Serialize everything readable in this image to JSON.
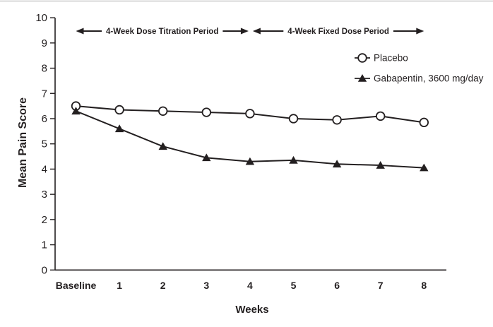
{
  "figure": {
    "background": "#ffffff",
    "ink_color": "#231f20",
    "top_border_color": "#c9c9c9"
  },
  "chart_data": {
    "type": "line",
    "title": "",
    "xlabel": "Weeks",
    "ylabel": "Mean Pain Score",
    "categories": [
      "Baseline",
      "1",
      "2",
      "3",
      "4",
      "5",
      "6",
      "7",
      "8"
    ],
    "ylim": [
      0,
      10
    ],
    "yticks": [
      0,
      1,
      2,
      3,
      4,
      5,
      6,
      7,
      8,
      9,
      10
    ],
    "grid": false,
    "series": [
      {
        "name": "Placebo",
        "marker": "open-circle",
        "color": "#231f20",
        "values": [
          6.5,
          6.35,
          6.3,
          6.25,
          6.2,
          6.0,
          5.95,
          6.1,
          5.85
        ]
      },
      {
        "name": "Gabapentin, 3600 mg/day",
        "marker": "filled-triangle",
        "color": "#231f20",
        "values": [
          6.3,
          5.6,
          4.9,
          4.45,
          4.3,
          4.35,
          4.2,
          4.15,
          4.05
        ]
      }
    ],
    "annotations": [
      {
        "label": "4-Week Dose Titration Period",
        "span_categories": [
          "Baseline",
          "4"
        ]
      },
      {
        "label": "4-Week Fixed Dose Period",
        "span_categories": [
          "4",
          "8"
        ]
      }
    ],
    "legend": {
      "position": "upper-right",
      "items": [
        "Placebo",
        "Gabapentin, 3600 mg/day"
      ]
    }
  }
}
